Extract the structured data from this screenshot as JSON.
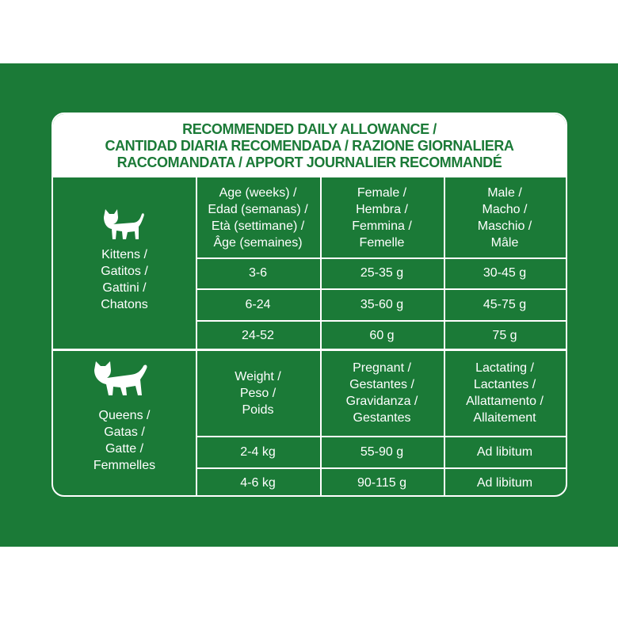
{
  "title": [
    "RECOMMENDED DAILY ALLOWANCE /",
    "CANTIDAD DIARIA RECOMENDADA / RAZIONE GIORNALIERA",
    "RACCOMANDATA / APPORT JOURNALIER RECOMMANDÉ"
  ],
  "sections": [
    {
      "label": [
        "Kittens /",
        "Gatitos /",
        "Gattini /",
        "Chatons"
      ],
      "header": [
        [
          "Age (weeks) /",
          "Edad (semanas) /",
          "Età (settimane) /",
          "Âge (semaines)"
        ],
        [
          "Female /",
          "Hembra /",
          "Femmina /",
          "Femelle"
        ],
        [
          "Male /",
          "Macho /",
          "Maschio /",
          "Mâle"
        ]
      ],
      "rows": [
        [
          "3-6",
          "25-35 g",
          "30-45 g"
        ],
        [
          "6-24",
          "35-60 g",
          "45-75 g"
        ],
        [
          "24-52",
          "60 g",
          "75 g"
        ]
      ]
    },
    {
      "label": [
        "Queens /",
        "Gatas /",
        "Gatte /",
        "Femmelles"
      ],
      "header": [
        [
          "Weight /",
          "Peso /",
          "Poids"
        ],
        [
          "Pregnant /",
          "Gestantes /",
          "Gravidanza /",
          "Gestantes"
        ],
        [
          "Lactating /",
          "Lactantes /",
          "Allattamento /",
          "Allaitement"
        ]
      ],
      "rows": [
        [
          "2-4 kg",
          "55-90 g",
          "Ad libitum"
        ],
        [
          "4-6 kg",
          "90-115 g",
          "Ad libitum"
        ]
      ]
    }
  ]
}
